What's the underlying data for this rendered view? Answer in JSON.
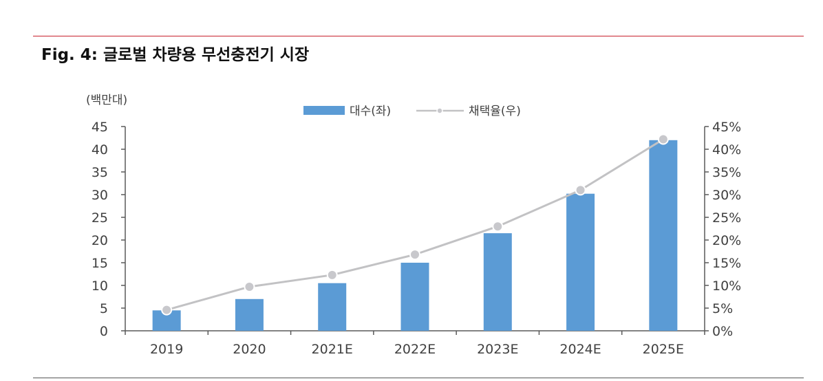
{
  "figure": {
    "title": "Fig. 4: 글로벌 차량용 무선충전기 시장"
  },
  "chart_data": {
    "type": "bar+line",
    "categories": [
      "2019",
      "2020",
      "2021E",
      "2022E",
      "2023E",
      "2024E",
      "2025E"
    ],
    "series": [
      {
        "name": "대수(좌)",
        "type": "bar",
        "axis": "left",
        "values": [
          4.5,
          7.0,
          10.5,
          15.0,
          21.5,
          30.2,
          42.0
        ]
      },
      {
        "name": "채택율(우)",
        "type": "line",
        "axis": "right",
        "values": [
          4.6,
          9.7,
          12.3,
          16.8,
          23.0,
          31.0,
          42.2
        ]
      }
    ],
    "y_left": {
      "unit_label": "(백만대)",
      "range": [
        0,
        45
      ],
      "ticks": [
        "0",
        "5",
        "10",
        "15",
        "20",
        "25",
        "30",
        "35",
        "40",
        "45"
      ]
    },
    "y_right": {
      "range": [
        0,
        45
      ],
      "ticks": [
        "0%",
        "5%",
        "10%",
        "15%",
        "20%",
        "25%",
        "30%",
        "35%",
        "40%",
        "45%"
      ]
    },
    "legend": {
      "bar_label": "대수(좌)",
      "line_label": "채택율(우)",
      "position": "top-center"
    },
    "colors": {
      "bar": "#5b9bd5",
      "line": "#c2c2c4",
      "marker": "#c8c8cc",
      "axis": "#595959",
      "text": "#404040"
    },
    "grid": false
  }
}
